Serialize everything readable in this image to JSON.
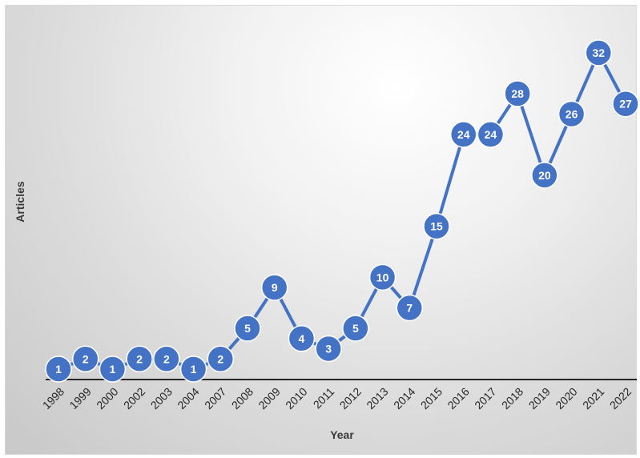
{
  "chart_data": {
    "type": "line",
    "title": "",
    "xlabel": "Year",
    "ylabel": "Articles",
    "categories": [
      "1998",
      "1999",
      "2000",
      "2002",
      "2003",
      "2004",
      "2007",
      "2008",
      "2009",
      "2010",
      "2011",
      "2012",
      "2013",
      "2014",
      "2015",
      "2016",
      "2017",
      "2018",
      "2019",
      "2020",
      "2021",
      "2022"
    ],
    "values": [
      1,
      2,
      1,
      2,
      2,
      1,
      2,
      5,
      9,
      4,
      3,
      5,
      10,
      7,
      15,
      24,
      24,
      28,
      20,
      26,
      32,
      27
    ],
    "ylim": [
      0,
      33
    ],
    "grid": false,
    "legend": "none",
    "data_labels": true,
    "series_color": "#4472c4",
    "axis_color": "#262626"
  }
}
